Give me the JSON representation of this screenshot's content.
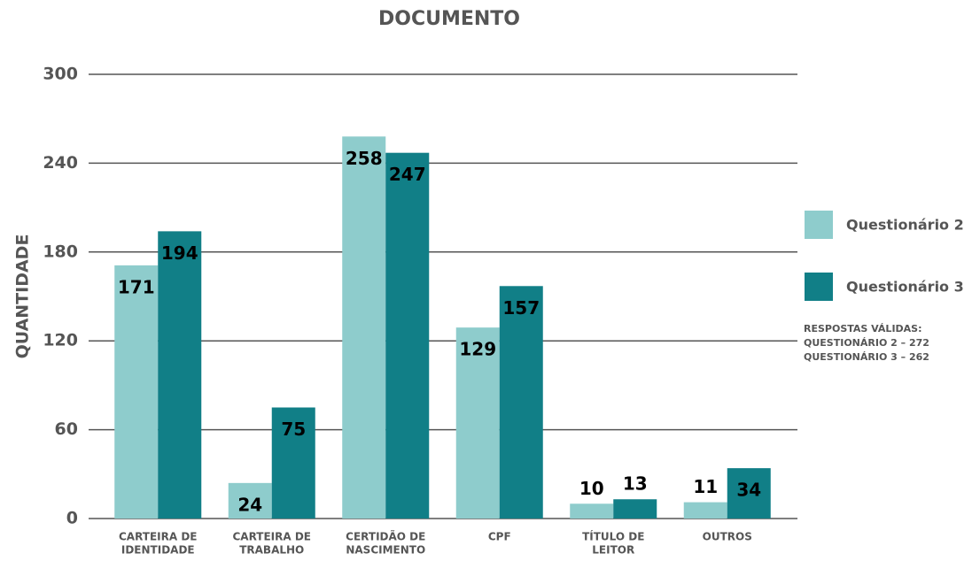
{
  "chart_data": {
    "type": "bar",
    "title": "DOCUMENTO",
    "y_label": "QUANTIDADE",
    "categories": [
      [
        "CARTEIRA DE",
        "IDENTIDADE"
      ],
      [
        "CARTEIRA DE",
        "TRABALHO"
      ],
      [
        "CERTIDÃO DE",
        "NASCIMENTO"
      ],
      [
        "CPF"
      ],
      [
        "TÍTULO DE",
        "LEITOR"
      ],
      [
        "OUTROS"
      ]
    ],
    "series": [
      {
        "name": "Questionário 2",
        "color": "#8ecccc",
        "values": [
          171,
          24,
          258,
          129,
          10,
          11
        ]
      },
      {
        "name": "Questionário 3",
        "color": "#117f87",
        "values": [
          194,
          75,
          247,
          157,
          13,
          34
        ]
      }
    ],
    "ylim": [
      0,
      300
    ],
    "yticks": [
      0,
      60,
      120,
      180,
      240,
      300
    ],
    "grid": true,
    "legend": "right",
    "notes": [
      "RESPOSTAS VÁLIDAS:",
      "QUESTIONÁRIO 2 – 272",
      "QUESTIONÁRIO 3 – 262"
    ]
  }
}
